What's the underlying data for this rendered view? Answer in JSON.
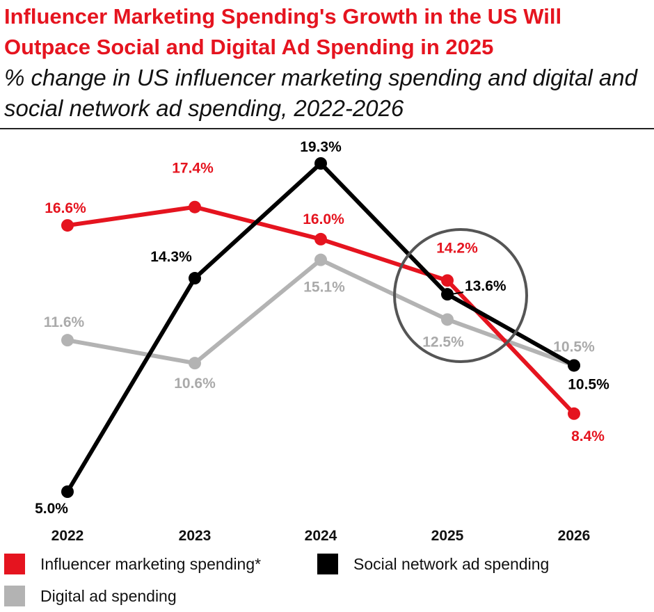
{
  "title": "Influencer Marketing Spending's Growth in the US Will Outpace Social and Digital Ad Spending in 2025",
  "subtitle": "% change in US influencer marketing spending and digital and social network ad spending, 2022-2026",
  "chart_data": {
    "type": "line",
    "categories": [
      "2022",
      "2023",
      "2024",
      "2025",
      "2026"
    ],
    "ylim": [
      4,
      20
    ],
    "series": [
      {
        "name": "Influencer marketing spending*",
        "color": "#e5141f",
        "values": [
          16.6,
          17.4,
          16.0,
          14.2,
          8.4
        ],
        "labels": [
          "16.6%",
          "17.4%",
          "16.0%",
          "14.2%",
          "8.4%"
        ]
      },
      {
        "name": "Social network ad spending",
        "color": "#000000",
        "values": [
          5.0,
          14.3,
          19.3,
          13.6,
          10.5
        ],
        "labels": [
          "5.0%",
          "14.3%",
          "19.3%",
          "13.6%",
          "10.5%"
        ]
      },
      {
        "name": "Digital ad spending",
        "color": "#b3b3b3",
        "values": [
          11.6,
          10.6,
          15.1,
          12.5,
          10.5
        ],
        "labels": [
          "11.6%",
          "10.6%",
          "15.1%",
          "12.5%",
          "10.5%"
        ]
      }
    ],
    "annotation": "circle highlighting 2025",
    "xlabel": "",
    "ylabel": ""
  },
  "legend": {
    "influencer": "Influencer marketing spending*",
    "social": "Social network ad spending",
    "digital": "Digital ad spending"
  }
}
